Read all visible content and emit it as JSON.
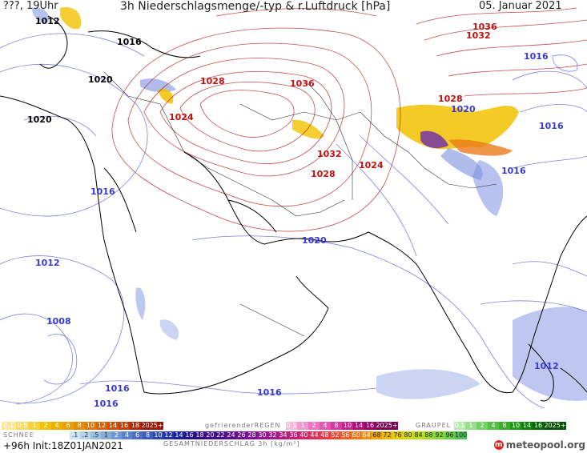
{
  "header": {
    "left": "???, 19Uhr",
    "title": "3h Niederschlagsmenge/-typ & r.Luftdruck [hPa]",
    "date": "05. Januar 2021"
  },
  "isobar_labels": [
    {
      "text": "1012",
      "c": "b"
    },
    {
      "text": "1016",
      "c": "b"
    },
    {
      "text": "1020",
      "c": "b"
    },
    {
      "text": "1020",
      "c": "b"
    },
    {
      "text": "1028",
      "c": "r"
    },
    {
      "text": "1024",
      "c": "r"
    },
    {
      "text": "1036",
      "c": "r"
    },
    {
      "text": "1036",
      "c": "r"
    },
    {
      "text": "1032",
      "c": "r"
    },
    {
      "text": "1016",
      "c": "b"
    },
    {
      "text": "1028",
      "c": "r"
    },
    {
      "text": "1020",
      "c": "b"
    },
    {
      "text": "1016",
      "c": "b"
    },
    {
      "text": "1032",
      "c": "r"
    },
    {
      "text": "1024",
      "c": "r"
    },
    {
      "text": "1028",
      "c": "r"
    },
    {
      "text": "1016",
      "c": "b"
    },
    {
      "text": "1016",
      "c": "b"
    },
    {
      "text": "1020",
      "c": "b"
    },
    {
      "text": "1012",
      "c": "b"
    },
    {
      "text": "1008",
      "c": "b"
    },
    {
      "text": "1012",
      "c": "b"
    },
    {
      "text": "1016",
      "c": "b"
    },
    {
      "text": "1016",
      "c": "b"
    },
    {
      "text": "1016",
      "c": "b"
    }
  ],
  "legend": {
    "schnee_label": "SCHNEE",
    "schnee_values": [
      "0.1",
      "0.5",
      "1",
      "2",
      "4",
      "6",
      "8",
      "10",
      "12",
      "14",
      "16",
      "18",
      "2025+"
    ],
    "regen_label": "gefrierenderREGEN",
    "regen_values": [
      "0.1",
      "1",
      "2",
      "4",
      "8",
      "10",
      "14",
      "16",
      "2025+"
    ],
    "graupel_label": "GRAUPEL",
    "graupel_values": [
      "0.1",
      "1",
      "2",
      "4",
      "8",
      "10",
      "14",
      "16",
      "2025+"
    ],
    "total_values": [
      ".1",
      ".2",
      ".5",
      "1",
      "2",
      "4",
      "6",
      "8",
      "10",
      "12",
      "14",
      "16",
      "18",
      "20",
      "22",
      "24",
      "26",
      "28",
      "30",
      "32",
      "34",
      "36",
      "40",
      "44",
      "48",
      "52",
      "56",
      "60",
      "64",
      "68",
      "72",
      "76",
      "80",
      "84",
      "88",
      "92",
      "96",
      "100"
    ],
    "total_label": "GESAMTNIEDERSCHLAG 3h [kg/m²]"
  },
  "footer": {
    "run": "+96h Init:18Z01JAN2021",
    "brand": "meteopool.org"
  },
  "colors": {
    "isobar_low": "#4b4bd6",
    "isobar_high": "#b31010",
    "snow_yellow": "#f2c200",
    "rain_blue": "#7b8fe0",
    "coast": "#000000"
  }
}
